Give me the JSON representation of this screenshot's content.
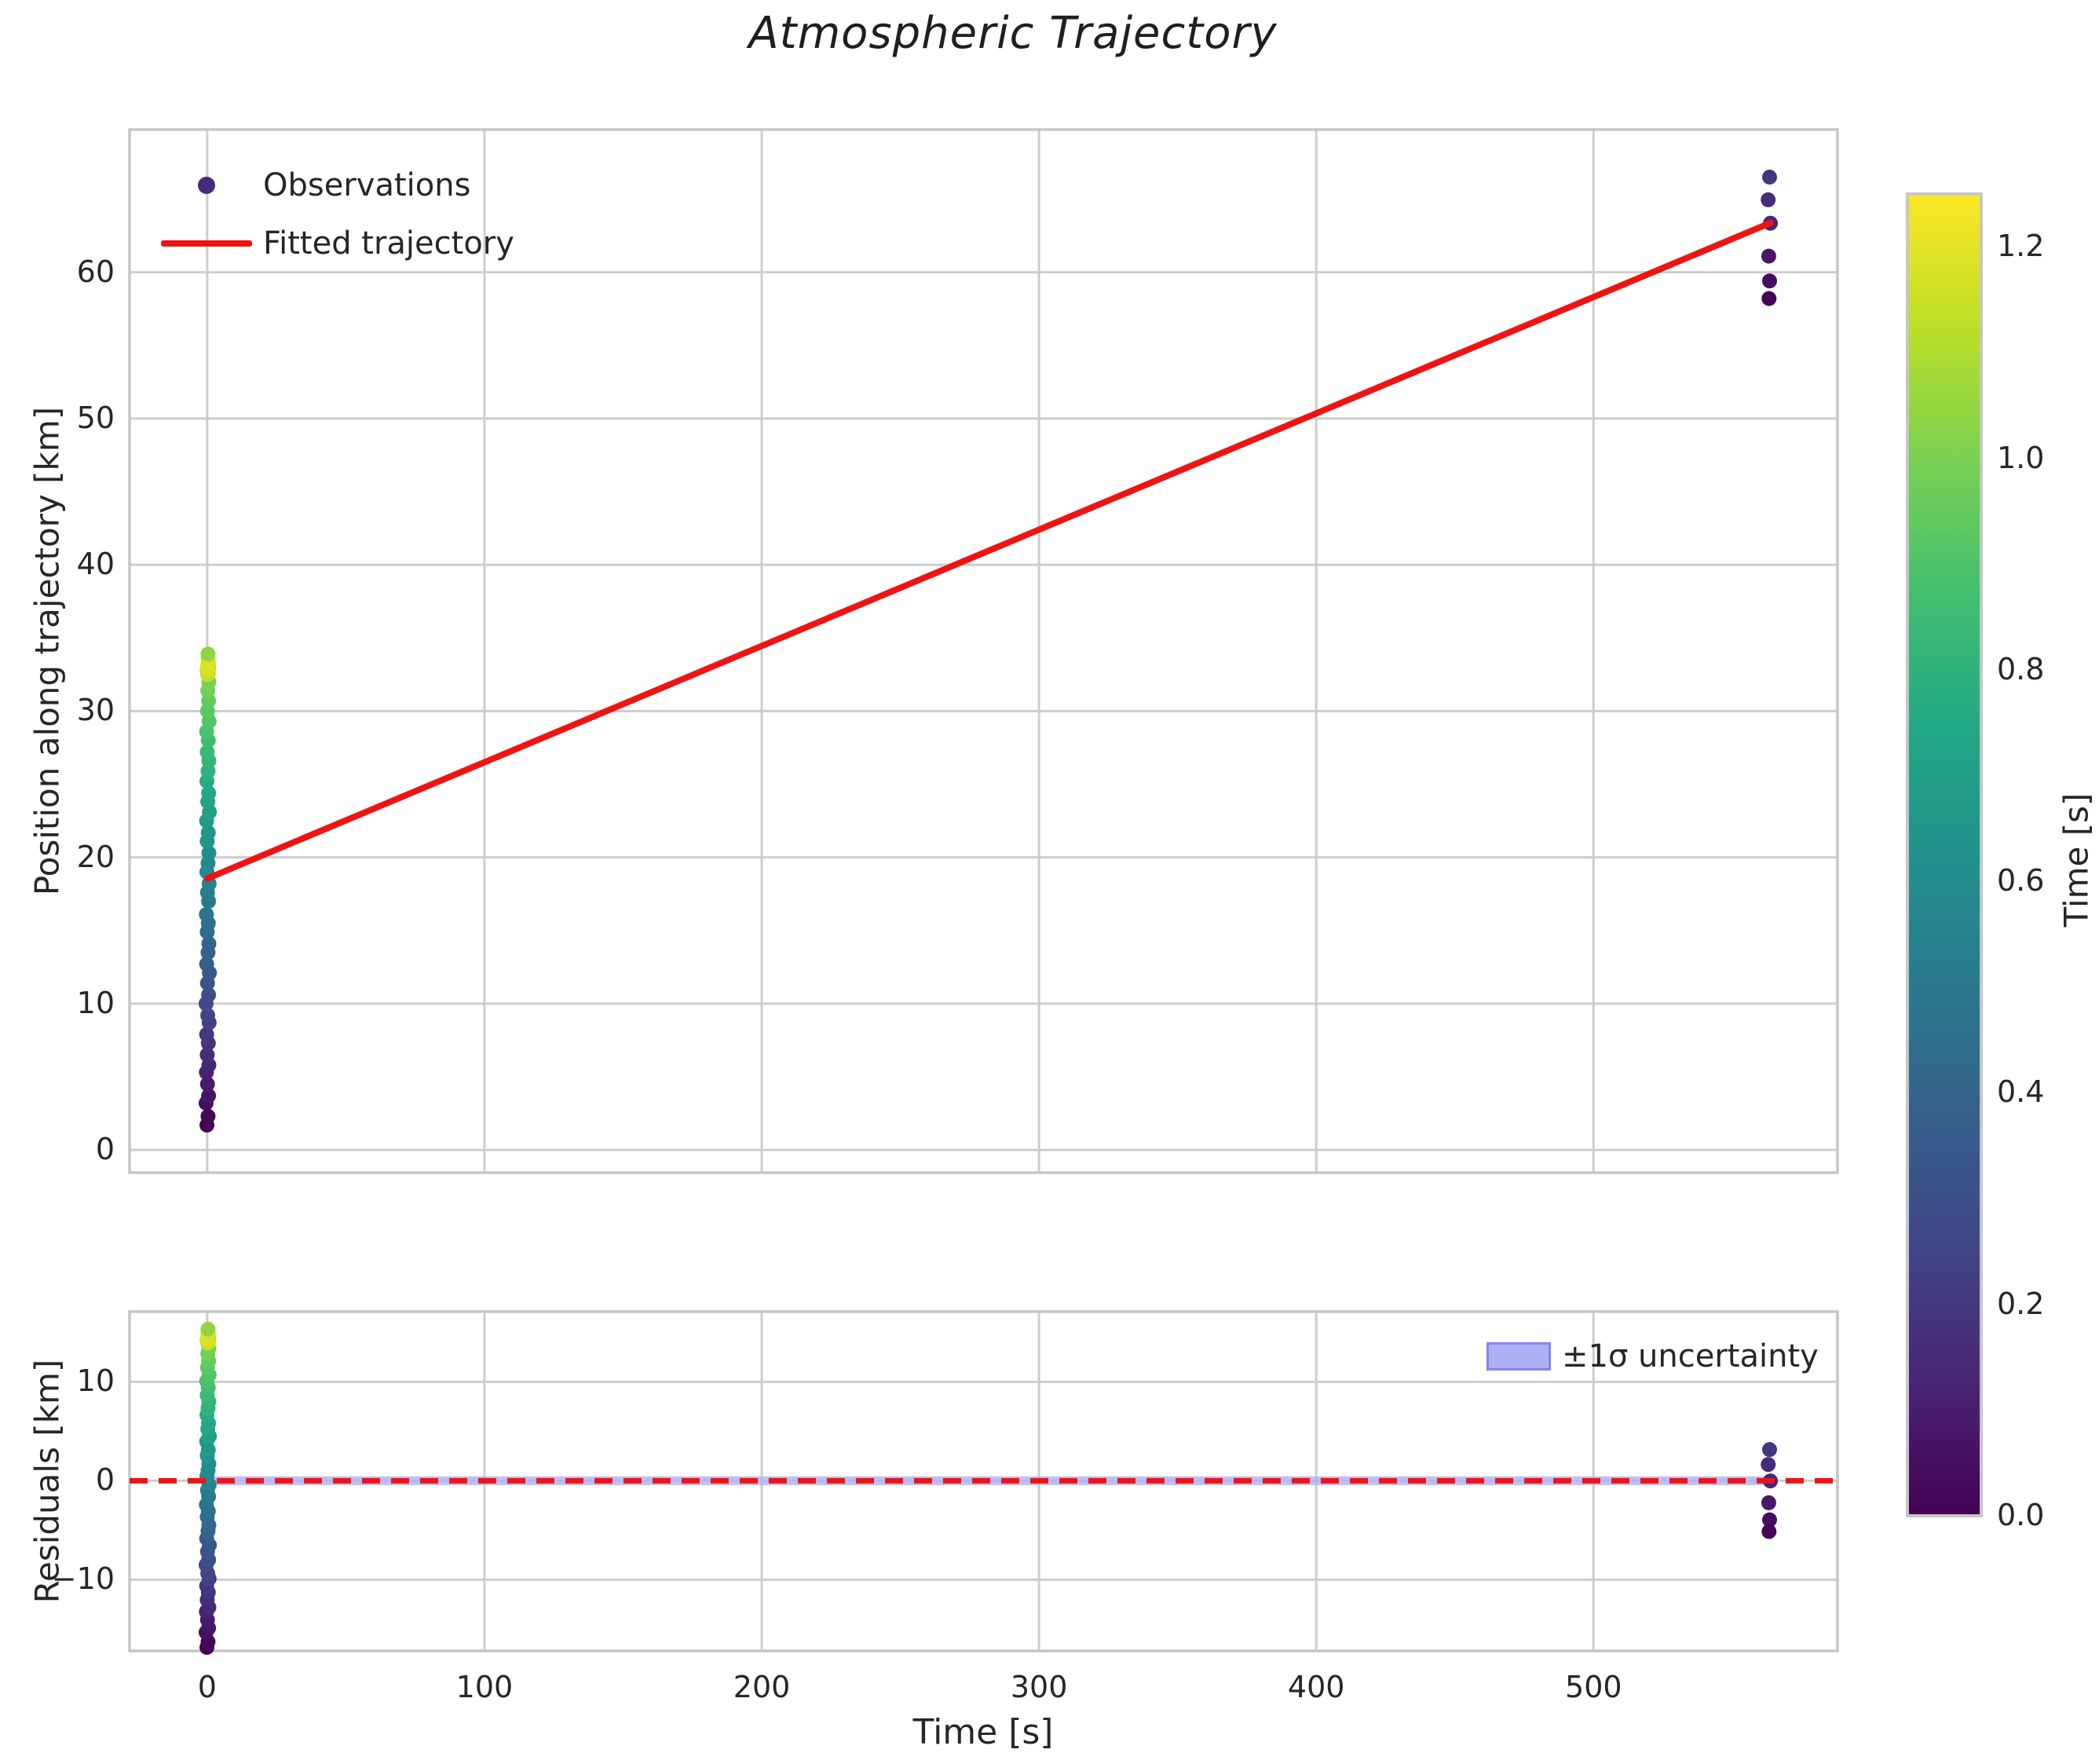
{
  "title": "Atmospheric Trajectory",
  "top_plot": {
    "ylabel": "Position along trajectory [km]",
    "yticks": [
      {
        "v": 0,
        "label": "0"
      },
      {
        "v": 10,
        "label": "10"
      },
      {
        "v": 20,
        "label": "20"
      },
      {
        "v": 30,
        "label": "30"
      },
      {
        "v": 40,
        "label": "40"
      },
      {
        "v": 50,
        "label": "50"
      },
      {
        "v": 60,
        "label": "60"
      }
    ],
    "legend": {
      "observations": "Observations",
      "fitted": "Fitted trajectory"
    }
  },
  "bottom_plot": {
    "ylabel": "Residuals [km]",
    "xlabel": "Time [s]",
    "yticks": [
      {
        "v": 10,
        "label": "10"
      },
      {
        "v": 0,
        "label": "0"
      },
      {
        "v": -10,
        "label": "−10"
      }
    ],
    "xticks": [
      {
        "v": 0,
        "label": "0"
      },
      {
        "v": 100,
        "label": "100"
      },
      {
        "v": 200,
        "label": "200"
      },
      {
        "v": 300,
        "label": "300"
      },
      {
        "v": 400,
        "label": "400"
      },
      {
        "v": 500,
        "label": "500"
      }
    ],
    "legend": {
      "band": "±1σ uncertainty"
    }
  },
  "colorbar": {
    "label": "Time [s]",
    "vmin": 0.0,
    "vmax": 1.25,
    "ticks": [
      {
        "v": 1.2,
        "label": "1.2"
      },
      {
        "v": 1.0,
        "label": "1.0"
      },
      {
        "v": 0.8,
        "label": "0.8"
      },
      {
        "v": 0.6,
        "label": "0.6"
      },
      {
        "v": 0.4,
        "label": "0.4"
      },
      {
        "v": 0.2,
        "label": "0.2"
      },
      {
        "v": 0.0,
        "label": "0.0"
      }
    ]
  },
  "colors": {
    "fit_line": "#ee1414",
    "zero_line": "#ee1414",
    "grid": "#cdcdcd",
    "spine": "#c6c6c6",
    "text": "#262626",
    "band_fill": "#b0b0f5",
    "band_edge": "#8585ea",
    "legend_marker": "#472a7a",
    "background": "#ffffff"
  },
  "chart_data": {
    "type": "scatter",
    "title": "Atmospheric Trajectory",
    "xlabel": "Time [s]",
    "xlim": [
      -28,
      588
    ],
    "top_panel": {
      "ylabel": "Position along trajectory [km]",
      "ylim": [
        -1.55,
        69.75
      ],
      "grid": true
    },
    "bottom_panel": {
      "ylabel": "Residuals [km]",
      "ylim": [
        -17.2,
        17.1
      ],
      "grid": true
    },
    "color_by": "Time [s]",
    "color_vmin": 0.0,
    "color_vmax": 1.25,
    "viridis_stops": [
      "#440154",
      "#482475",
      "#414487",
      "#355f8d",
      "#2a788e",
      "#21918c",
      "#22a884",
      "#44bf70",
      "#7ad151",
      "#bddf26",
      "#fde725"
    ],
    "fit": {
      "label": "Fitted trajectory",
      "intercept_km": 18.55,
      "slope_km_per_s": 0.0795,
      "t_start_s": 0,
      "t_end_s": 563.8
    },
    "sigma_band_km": 0.45,
    "observations_t0": [
      [
        -0.1,
        0.0,
        1.7
      ],
      [
        0.3,
        0.02,
        2.3
      ],
      [
        -0.4,
        0.05,
        3.2
      ],
      [
        0.5,
        0.07,
        3.7
      ],
      [
        0.1,
        0.09,
        4.5
      ],
      [
        -0.3,
        0.11,
        5.3
      ],
      [
        0.6,
        0.14,
        5.8
      ],
      [
        0.0,
        0.16,
        6.5
      ],
      [
        0.4,
        0.18,
        7.3
      ],
      [
        -0.2,
        0.2,
        7.9
      ],
      [
        0.7,
        0.23,
        8.7
      ],
      [
        0.2,
        0.25,
        9.2
      ],
      [
        -0.4,
        0.27,
        10.0
      ],
      [
        0.5,
        0.3,
        10.6
      ],
      [
        0.1,
        0.32,
        11.4
      ],
      [
        0.8,
        0.34,
        12.1
      ],
      [
        -0.2,
        0.36,
        12.7
      ],
      [
        0.3,
        0.39,
        13.5
      ],
      [
        0.6,
        0.41,
        14.1
      ],
      [
        0.0,
        0.43,
        14.9
      ],
      [
        0.4,
        0.45,
        15.5
      ],
      [
        -0.3,
        0.48,
        16.1
      ],
      [
        0.5,
        0.5,
        17.0
      ],
      [
        0.1,
        0.52,
        17.6
      ],
      [
        0.7,
        0.55,
        18.2
      ],
      [
        -0.1,
        0.57,
        19.0
      ],
      [
        0.3,
        0.59,
        19.6
      ],
      [
        0.6,
        0.61,
        20.3
      ],
      [
        0.0,
        0.64,
        21.1
      ],
      [
        0.4,
        0.66,
        21.7
      ],
      [
        -0.2,
        0.68,
        22.5
      ],
      [
        0.8,
        0.7,
        23.1
      ],
      [
        0.2,
        0.73,
        23.8
      ],
      [
        0.5,
        0.75,
        24.4
      ],
      [
        -0.1,
        0.77,
        25.2
      ],
      [
        0.3,
        0.8,
        25.9
      ],
      [
        0.6,
        0.82,
        26.6
      ],
      [
        0.0,
        0.84,
        27.2
      ],
      [
        0.4,
        0.86,
        28.0
      ],
      [
        -0.2,
        0.89,
        28.6
      ],
      [
        0.7,
        0.91,
        29.3
      ],
      [
        0.1,
        0.93,
        30.0
      ],
      [
        0.5,
        0.95,
        30.7
      ],
      [
        0.2,
        0.98,
        31.4
      ],
      [
        0.6,
        1.0,
        32.0
      ],
      [
        0.0,
        1.03,
        32.8
      ],
      [
        0.3,
        1.21,
        33.2
      ],
      [
        0.5,
        1.23,
        32.6
      ],
      [
        0.1,
        1.25,
        33.1
      ],
      [
        0.4,
        1.06,
        33.3
      ],
      [
        0.0,
        1.08,
        32.7
      ],
      [
        0.3,
        1.1,
        33.6
      ],
      [
        0.6,
        1.12,
        33.0
      ],
      [
        0.2,
        1.14,
        32.5
      ],
      [
        0.4,
        1.16,
        33.4
      ],
      [
        0.1,
        1.18,
        32.9
      ],
      [
        0.3,
        1.04,
        33.9
      ]
    ],
    "observations_t563": [
      [
        563.5,
        0.19,
        66.5
      ],
      [
        563.0,
        0.16,
        64.95
      ],
      [
        563.8,
        0.13,
        63.35
      ],
      [
        563.2,
        0.08,
        61.1
      ],
      [
        563.5,
        0.04,
        59.4
      ],
      [
        563.3,
        0.01,
        58.2
      ]
    ]
  }
}
